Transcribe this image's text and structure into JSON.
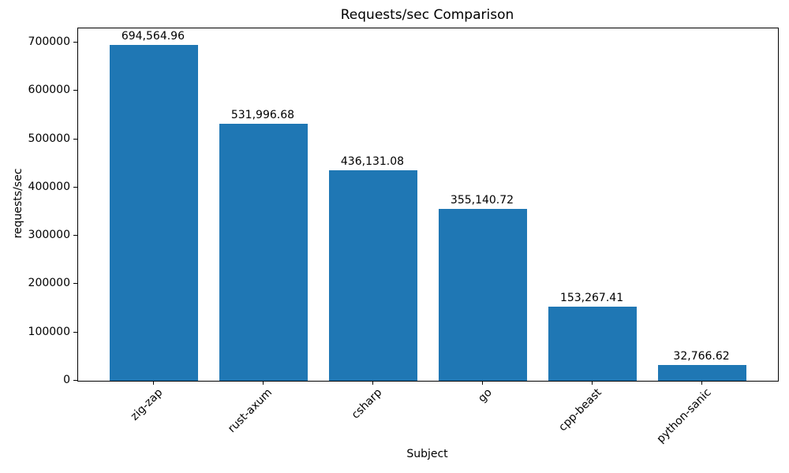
{
  "chart_data": {
    "type": "bar",
    "title": "Requests/sec Comparison",
    "xlabel": "Subject",
    "ylabel": "requests/sec",
    "categories": [
      "zig-zap",
      "rust-axum",
      "csharp",
      "go",
      "cpp-beast",
      "python-sanic"
    ],
    "values": [
      694564.96,
      531996.68,
      436131.08,
      355140.72,
      153267.41,
      32766.62
    ],
    "value_labels": [
      "694,564.96",
      "531,996.68",
      "436,131.08",
      "355,140.72",
      "153,267.41",
      "32,766.62"
    ],
    "bar_color": "#1f77b4",
    "ylim": [
      0,
      729293
    ],
    "yticks": [
      0,
      100000,
      200000,
      300000,
      400000,
      500000,
      600000,
      700000
    ],
    "xlim": [
      -0.69,
      5.69
    ],
    "bar_width": 0.8,
    "xtick_rotation": 45,
    "grid": false,
    "legend": null
  }
}
